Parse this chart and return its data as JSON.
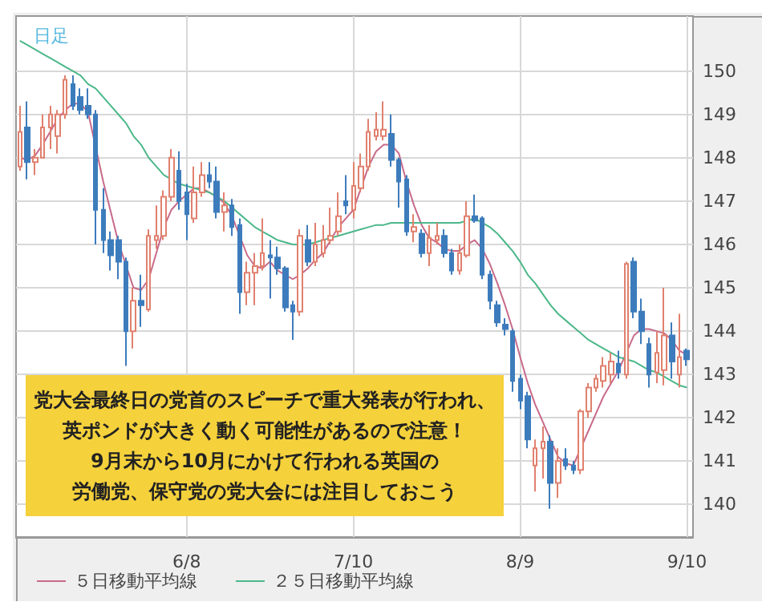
{
  "chart_data": {
    "type": "candlestick",
    "title": "日足",
    "categories": [
      null,
      null,
      null,
      null,
      null,
      null,
      null,
      null,
      null,
      null,
      null,
      null,
      null,
      null,
      null,
      null,
      null,
      null,
      null,
      null,
      null,
      null,
      "6/8",
      null,
      null,
      null,
      null,
      null,
      null,
      null,
      null,
      null,
      null,
      null,
      null,
      null,
      null,
      null,
      null,
      null,
      null,
      null,
      null,
      null,
      "7/10",
      null,
      null,
      null,
      null,
      null,
      null,
      null,
      null,
      null,
      null,
      null,
      null,
      null,
      null,
      null,
      null,
      null,
      null,
      null,
      null,
      null,
      "8/9",
      null,
      null,
      null,
      null,
      null,
      null,
      null,
      null,
      null,
      null,
      null,
      null,
      null,
      null,
      null,
      null,
      null,
      null,
      null,
      null,
      null,
      "9/10"
    ],
    "ohlc": [
      [
        147.8,
        149.2,
        147.7,
        148.6
      ],
      [
        148.7,
        149.3,
        147.5,
        147.9
      ],
      [
        147.9,
        148.2,
        147.6,
        148.0
      ],
      [
        148.0,
        149.0,
        148.0,
        148.7
      ],
      [
        148.7,
        149.2,
        148.2,
        149.0
      ],
      [
        148.5,
        149.1,
        148.1,
        149.0
      ],
      [
        149.0,
        149.9,
        148.9,
        149.8
      ],
      [
        149.7,
        149.9,
        149.1,
        149.2
      ],
      [
        149.4,
        149.6,
        149.0,
        149.1
      ],
      [
        149.2,
        149.6,
        148.9,
        149.0
      ],
      [
        149.0,
        149.1,
        146.0,
        146.8
      ],
      [
        146.8,
        147.3,
        145.8,
        146.1
      ],
      [
        146.1,
        146.3,
        145.4,
        145.75
      ],
      [
        146.1,
        146.2,
        145.2,
        145.6
      ],
      [
        145.6,
        145.7,
        143.2,
        144.0
      ],
      [
        144.0,
        145.0,
        143.6,
        144.7
      ],
      [
        144.7,
        145.3,
        144.1,
        144.6
      ],
      [
        144.5,
        146.35,
        144.45,
        146.2
      ],
      [
        146.1,
        146.9,
        145.9,
        146.2
      ],
      [
        146.2,
        147.25,
        146.1,
        147.1
      ],
      [
        147.1,
        148.2,
        147.0,
        148.0
      ],
      [
        147.7,
        148.15,
        146.8,
        147.0
      ],
      [
        147.2,
        147.4,
        146.1,
        146.7
      ],
      [
        146.6,
        147.8,
        146.5,
        147.2
      ],
      [
        147.2,
        147.9,
        147.1,
        147.6
      ],
      [
        147.6,
        147.9,
        147.3,
        147.45
      ],
      [
        147.45,
        147.8,
        146.6,
        146.75
      ],
      [
        146.75,
        147.2,
        146.3,
        146.9
      ],
      [
        146.9,
        147.05,
        146.2,
        146.4
      ],
      [
        146.45,
        146.6,
        144.4,
        144.9
      ],
      [
        144.9,
        145.6,
        144.6,
        145.35
      ],
      [
        145.35,
        145.8,
        144.6,
        145.5
      ],
      [
        145.5,
        146.6,
        145.4,
        145.8
      ],
      [
        145.75,
        146.1,
        144.75,
        145.7
      ],
      [
        145.7,
        145.95,
        145.3,
        145.45
      ],
      [
        145.45,
        145.5,
        144.45,
        144.55
      ],
      [
        144.6,
        144.7,
        143.8,
        144.45
      ],
      [
        144.45,
        146.35,
        144.35,
        146.2
      ],
      [
        146.1,
        146.45,
        145.5,
        145.6
      ],
      [
        145.6,
        146.5,
        145.5,
        146.0
      ],
      [
        145.8,
        146.45,
        145.7,
        146.1
      ],
      [
        146.1,
        146.85,
        146.0,
        146.2
      ],
      [
        146.3,
        147.2,
        146.2,
        146.65
      ],
      [
        147.0,
        147.6,
        146.7,
        146.9
      ],
      [
        146.8,
        147.9,
        146.6,
        147.35
      ],
      [
        147.3,
        148.1,
        147.2,
        147.8
      ],
      [
        147.8,
        148.9,
        147.7,
        148.6
      ],
      [
        148.5,
        149.05,
        148.4,
        148.65
      ],
      [
        148.5,
        149.3,
        148.4,
        148.65
      ],
      [
        148.55,
        149.0,
        147.8,
        147.95
      ],
      [
        147.95,
        148.0,
        146.85,
        147.45
      ],
      [
        147.5,
        147.6,
        146.2,
        146.3
      ],
      [
        146.3,
        146.7,
        146.05,
        146.4
      ],
      [
        146.25,
        146.35,
        145.7,
        145.8
      ],
      [
        145.8,
        146.45,
        145.5,
        146.15
      ],
      [
        146.1,
        146.5,
        146.0,
        146.2
      ],
      [
        146.2,
        146.35,
        145.7,
        145.8
      ],
      [
        145.8,
        145.9,
        145.3,
        145.4
      ],
      [
        145.4,
        146.0,
        145.3,
        145.8
      ],
      [
        145.75,
        147.0,
        145.7,
        146.65
      ],
      [
        146.65,
        147.15,
        146.5,
        146.55
      ],
      [
        146.6,
        146.65,
        145.2,
        145.3
      ],
      [
        145.3,
        145.4,
        144.5,
        144.7
      ],
      [
        144.6,
        144.7,
        144.1,
        144.2
      ],
      [
        144.15,
        144.3,
        143.9,
        144.05
      ],
      [
        144.0,
        144.05,
        142.6,
        142.85
      ],
      [
        142.9,
        143.0,
        142.2,
        142.4
      ],
      [
        142.5,
        142.6,
        141.3,
        141.5
      ],
      [
        140.9,
        141.5,
        140.3,
        141.3
      ],
      [
        141.3,
        141.8,
        140.6,
        141.45
      ],
      [
        141.45,
        141.6,
        139.9,
        140.5
      ],
      [
        140.5,
        141.3,
        140.15,
        141.0
      ],
      [
        141.05,
        141.3,
        140.8,
        140.9
      ],
      [
        140.9,
        141.0,
        140.7,
        140.8
      ],
      [
        140.8,
        142.2,
        140.7,
        142.15
      ],
      [
        142.15,
        142.8,
        142.0,
        142.7
      ],
      [
        142.7,
        143.0,
        142.6,
        142.9
      ],
      [
        142.85,
        143.4,
        142.7,
        143.2
      ],
      [
        143.0,
        143.5,
        142.8,
        143.3
      ],
      [
        143.25,
        143.55,
        142.9,
        143.05
      ],
      [
        143.0,
        145.6,
        142.9,
        145.55
      ],
      [
        145.6,
        145.7,
        144.3,
        144.45
      ],
      [
        144.45,
        144.75,
        143.7,
        144.0
      ],
      [
        143.7,
        143.85,
        142.7,
        143.0
      ],
      [
        143.05,
        144.0,
        142.8,
        143.5
      ],
      [
        143.1,
        145.0,
        142.75,
        143.9
      ],
      [
        143.9,
        144.2,
        142.9,
        143.3
      ],
      [
        143.0,
        144.4,
        142.7,
        143.4
      ],
      [
        143.55,
        143.6,
        143.2,
        143.35
      ]
    ],
    "series": [
      {
        "name": "５日移動平均線",
        "type": "line",
        "color": "#c86a8a",
        "values": [
          148.0,
          147.95,
          148.05,
          148.3,
          148.6,
          148.9,
          149.1,
          149.25,
          149.25,
          149.05,
          null,
          147.45,
          146.75,
          146.05,
          null,
          145.0,
          144.95,
          145.2,
          145.8,
          146.4,
          146.8,
          147.0,
          147.15,
          147.3,
          147.3,
          147.2,
          147.1,
          146.95,
          146.65,
          null,
          145.75,
          145.5,
          145.45,
          145.6,
          145.4,
          145.3,
          145.2,
          145.3,
          145.45,
          145.65,
          145.8,
          146.1,
          146.4,
          146.6,
          146.8,
          147.3,
          147.8,
          148.15,
          148.3,
          148.3,
          148.1,
          147.45,
          146.9,
          146.45,
          146.15,
          146.05,
          145.9,
          145.85,
          145.85,
          146.0,
          146.1,
          145.9,
          145.55,
          145.1,
          144.6,
          144.05,
          143.4,
          142.8,
          142.3,
          141.9,
          141.5,
          141.1,
          140.95,
          140.9,
          141.3,
          141.7,
          142.1,
          142.5,
          142.8,
          143.1,
          143.5,
          143.9,
          144.05,
          144.05,
          144.0,
          143.95,
          143.8,
          143.55,
          143.45
        ]
      },
      {
        "name": "２５日移動平均線",
        "type": "line",
        "color": "#4cb88a",
        "values": [
          150.7,
          150.6,
          150.5,
          150.4,
          150.3,
          150.2,
          150.1,
          150.0,
          149.9,
          149.7,
          149.6,
          149.4,
          149.2,
          149.0,
          148.8,
          148.5,
          148.3,
          148.0,
          147.8,
          147.6,
          147.5,
          147.4,
          147.35,
          147.3,
          147.25,
          147.2,
          147.1,
          147.0,
          146.85,
          146.7,
          146.55,
          146.4,
          146.3,
          146.2,
          146.1,
          146.05,
          146.0,
          146.0,
          146.0,
          146.05,
          146.1,
          146.15,
          146.2,
          146.25,
          146.3,
          146.35,
          146.4,
          146.45,
          146.45,
          146.5,
          146.5,
          146.5,
          146.5,
          146.5,
          146.5,
          146.5,
          146.5,
          146.5,
          146.5,
          146.55,
          146.6,
          146.5,
          146.4,
          146.25,
          146.05,
          145.85,
          145.6,
          145.3,
          145.1,
          144.85,
          144.6,
          144.4,
          144.25,
          144.1,
          143.95,
          143.8,
          143.7,
          143.6,
          143.5,
          143.4,
          143.35,
          143.3,
          143.2,
          143.1,
          143.05,
          142.95,
          142.85,
          142.75,
          142.7
        ]
      }
    ],
    "ylim": [
      139.25,
      151.27
    ],
    "yticks": [
      140,
      141,
      142,
      143,
      144,
      145,
      146,
      147,
      148,
      149,
      150
    ],
    "grid": true,
    "legend": "bottom left",
    "marker": "none",
    "annotations": [
      "党大会最終日の党首のスピーチで重大発表が行われ、",
      "英ポンドが大きく動く可能性があるので注意！",
      "9月末から10月にかけて行われる英国の",
      "労働党、保守党の党大会には注目しておこう"
    ]
  }
}
